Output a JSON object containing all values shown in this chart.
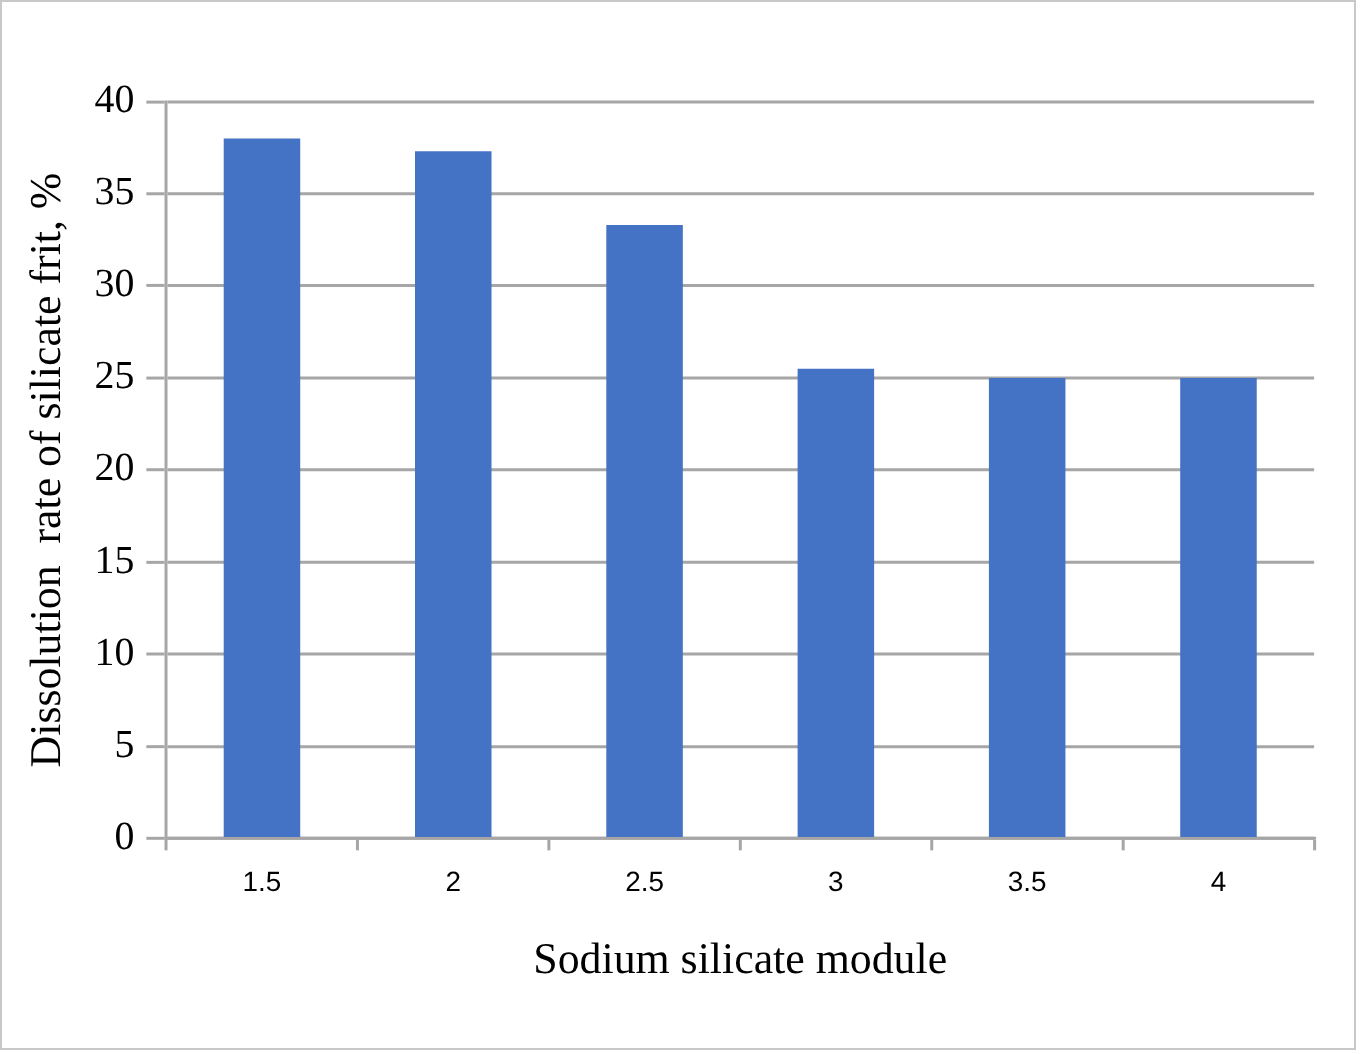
{
  "chart_data": {
    "type": "bar",
    "xlabel": "Sodium silicate module",
    "ylabel": "Dissolution  rate of silicate frit, %",
    "categories": [
      "1.5",
      "2",
      "2.5",
      "3",
      "3.5",
      "4"
    ],
    "values": [
      38,
      37.3,
      33.3,
      25.5,
      25,
      25
    ],
    "color": "#4472c4",
    "ylim": [
      0,
      40
    ],
    "yticks": [
      0,
      5,
      10,
      15,
      20,
      25,
      30,
      35,
      40
    ],
    "grid": "y",
    "legend": false
  }
}
